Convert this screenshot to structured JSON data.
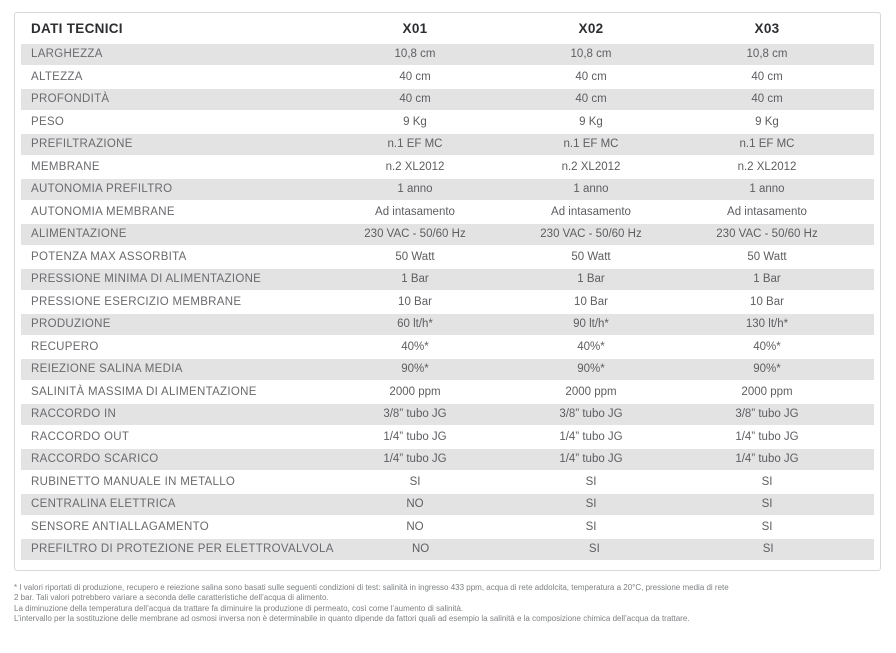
{
  "table": {
    "header": {
      "label": "DATI TECNICI",
      "columns": [
        "X01",
        "X02",
        "X03"
      ]
    },
    "rows": [
      {
        "label": "LARGHEZZA",
        "x01": "10,8 cm",
        "x02": "10,8 cm",
        "x03": "10,8 cm"
      },
      {
        "label": "ALTEZZA",
        "x01": "40 cm",
        "x02": "40 cm",
        "x03": "40 cm"
      },
      {
        "label": "PROFONDITÀ",
        "x01": "40 cm",
        "x02": "40 cm",
        "x03": "40 cm"
      },
      {
        "label": "PESO",
        "x01": "9 Kg",
        "x02": "9 Kg",
        "x03": "9 Kg"
      },
      {
        "label": "PREFILTRAZIONE",
        "x01": "n.1 EF MC",
        "x02": "n.1 EF MC",
        "x03": "n.1 EF MC"
      },
      {
        "label": "MEMBRANE",
        "x01": "n.2 XL2012",
        "x02": "n.2 XL2012",
        "x03": "n.2 XL2012"
      },
      {
        "label": "AUTONOMIA PREFILTRO",
        "x01": "1 anno",
        "x02": "1 anno",
        "x03": "1 anno"
      },
      {
        "label": "AUTONOMIA MEMBRANE",
        "x01": "Ad intasamento",
        "x02": "Ad intasamento",
        "x03": "Ad intasamento"
      },
      {
        "label": "ALIMENTAZIONE",
        "x01": "230 VAC - 50/60 Hz",
        "x02": "230 VAC - 50/60 Hz",
        "x03": "230 VAC - 50/60 Hz"
      },
      {
        "label": "POTENZA MAX ASSORBITA",
        "x01": "50 Watt",
        "x02": "50 Watt",
        "x03": "50 Watt"
      },
      {
        "label": "PRESSIONE MINIMA DI ALIMENTAZIONE",
        "x01": "1 Bar",
        "x02": "1 Bar",
        "x03": "1 Bar"
      },
      {
        "label": "PRESSIONE ESERCIZIO MEMBRANE",
        "x01": "10 Bar",
        "x02": "10 Bar",
        "x03": "10 Bar"
      },
      {
        "label": "PRODUZIONE",
        "x01": "60 lt/h*",
        "x02": "90 lt/h*",
        "x03": "130 lt/h*"
      },
      {
        "label": "RECUPERO",
        "x01": "40%*",
        "x02": "40%*",
        "x03": "40%*"
      },
      {
        "label": "REIEZIONE SALINA MEDIA",
        "x01": "90%*",
        "x02": "90%*",
        "x03": "90%*"
      },
      {
        "label": "SALINITÀ MASSIMA DI ALIMENTAZIONE",
        "x01": "2000 ppm",
        "x02": "2000 ppm",
        "x03": "2000 ppm"
      },
      {
        "label": "RACCORDO IN",
        "x01": "3/8” tubo JG",
        "x02": "3/8” tubo JG",
        "x03": "3/8” tubo JG"
      },
      {
        "label": "RACCORDO OUT",
        "x01": "1/4” tubo JG",
        "x02": "1/4” tubo JG",
        "x03": "1/4” tubo JG"
      },
      {
        "label": "RACCORDO SCARICO",
        "x01": "1/4” tubo JG",
        "x02": "1/4” tubo JG",
        "x03": "1/4” tubo JG"
      },
      {
        "label": "RUBINETTO MANUALE IN METALLO",
        "x01": "SI",
        "x02": "SI",
        "x03": "SI"
      },
      {
        "label": "CENTRALINA ELETTRICA",
        "x01": "NO",
        "x02": "SI",
        "x03": "SI"
      },
      {
        "label": "SENSORE ANTIALLAGAMENTO",
        "x01": "NO",
        "x02": "SI",
        "x03": "SI"
      },
      {
        "label": "PREFILTRO DI PROTEZIONE PER ELETTROVALVOLA",
        "x01": "NO",
        "x02": "SI",
        "x03": "SI"
      }
    ]
  },
  "footnote": {
    "lines": [
      "* I valori riportati di produzione, recupero e reiezione salina sono basati sulle seguenti condizioni di test: salinità in ingresso 433 ppm, acqua di rete addolcita, temperatura a 20°C, pressione media di rete",
      "2 bar. Tali valori potrebbero variare a seconda delle caratteristiche dell’acqua di alimento.",
      "La diminuzione della temperatura dell’acqua da trattare fa diminuire la produzione di permeato, così come l’aumento di salinità.",
      "L’intervallo per la sostituzione delle membrane ad osmosi inversa non è determinabile in quanto dipende da fattori quali ad esempio la salinità e la composizione chimica dell’acqua da trattare."
    ]
  },
  "colors": {
    "row_stripe": "#e3e3e4",
    "table_border": "#d7d8d9",
    "header_text": "#2d2e30",
    "label_text": "#696a6d",
    "value_text": "#5d5e61",
    "footnote_text": "#7e8083"
  }
}
